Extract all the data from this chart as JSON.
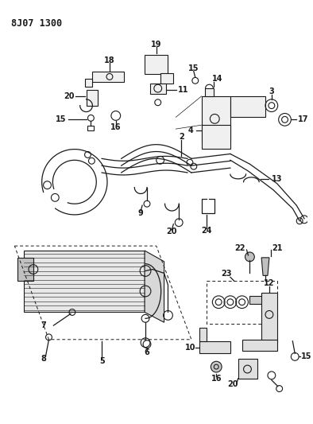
{
  "title": "8J07 1300",
  "bg": "#ffffff",
  "lc": "#1a1a1a",
  "fig_w": 3.94,
  "fig_h": 5.33,
  "dpi": 100
}
